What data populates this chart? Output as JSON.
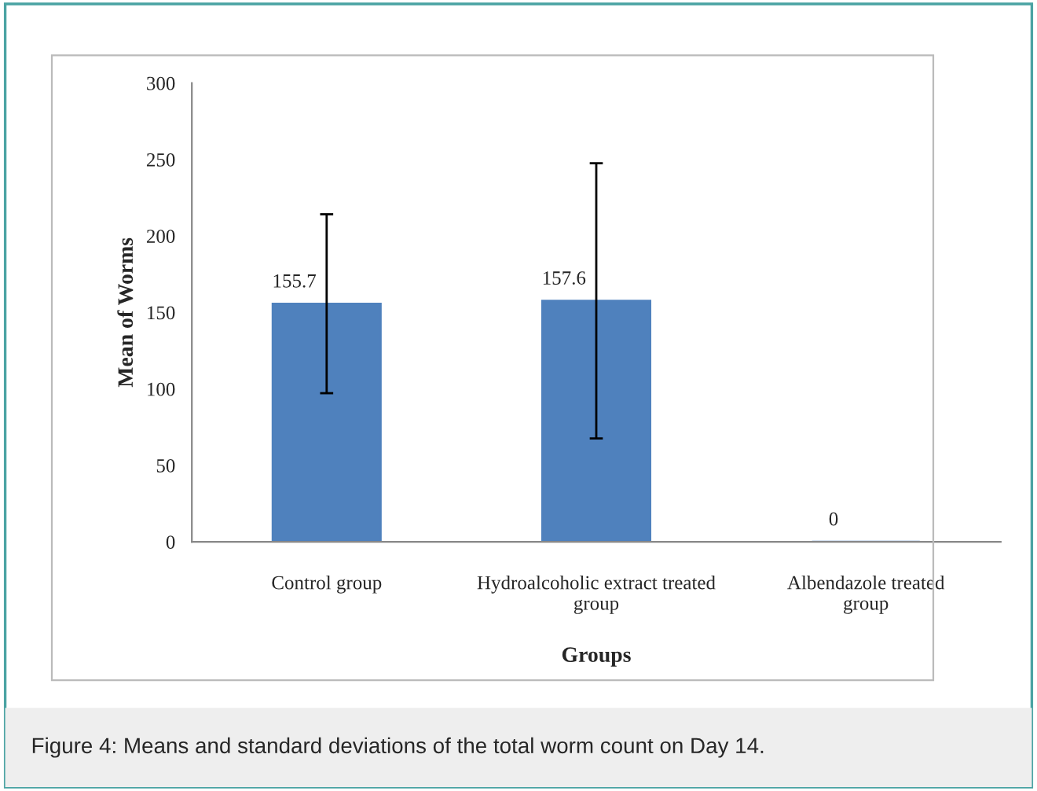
{
  "chart_data": {
    "type": "bar",
    "categories": [
      "Control group",
      "Hydroalcoholic extract treated\ngroup",
      "Albendazole treated\ngroup"
    ],
    "values": [
      155.7,
      157.6,
      0
    ],
    "errors": [
      58.5,
      90,
      null
    ],
    "value_labels": [
      "155.7",
      "157.6",
      "0"
    ],
    "color": "#4f81bd",
    "xlabel": "Groups",
    "ylabel": "Mean of Worms",
    "ylim": [
      0,
      300
    ],
    "yticks": [
      0,
      50,
      100,
      150,
      200,
      250,
      300
    ],
    "grid": false,
    "legend": false,
    "annotations": [
      "Figure 4: Means and standard deviations of the total worm count on Day 14."
    ]
  }
}
